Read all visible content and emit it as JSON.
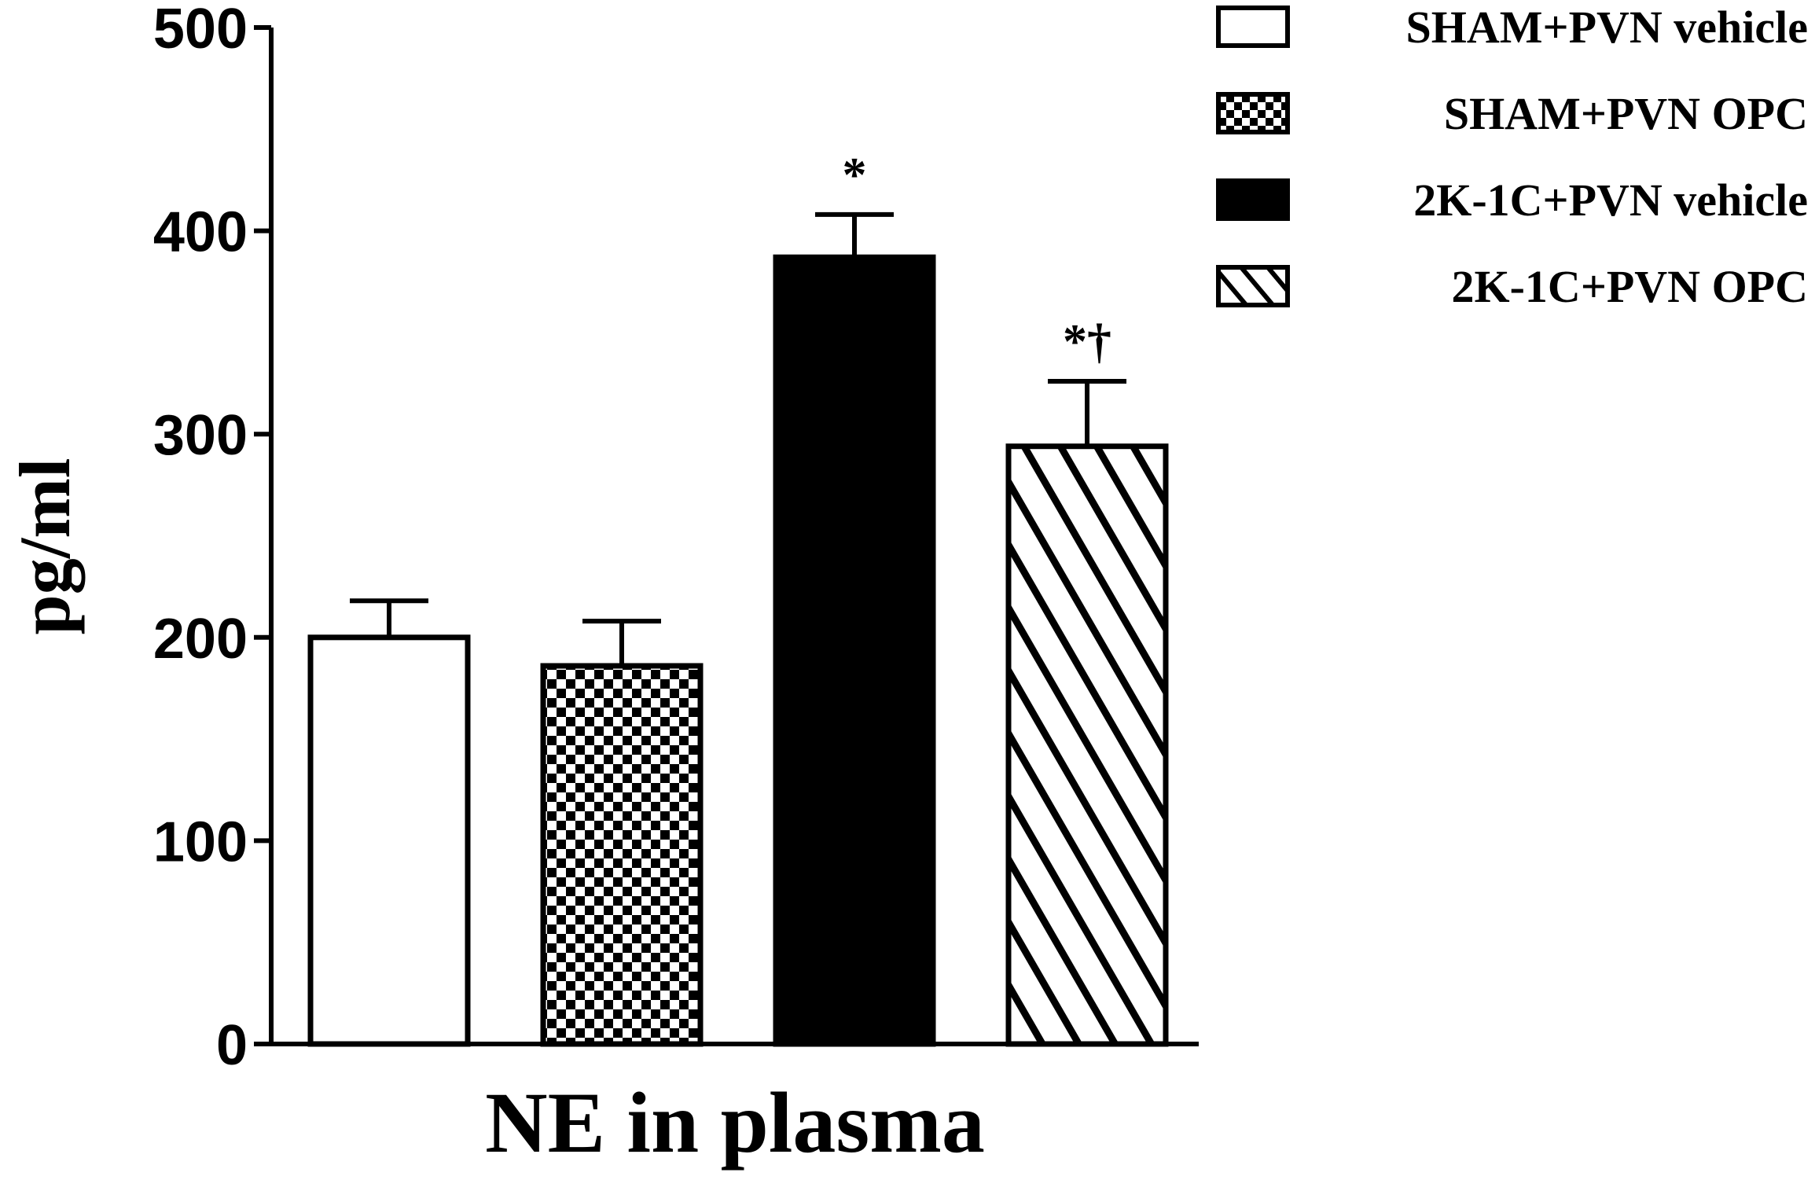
{
  "chart_data": {
    "type": "bar",
    "xlabel": "NE in plasma",
    "ylabel": "pg/ml",
    "ylim": [
      0,
      500
    ],
    "yticks": [
      "0",
      "100",
      "200",
      "300",
      "400",
      "500"
    ],
    "grid": false,
    "legend_position": "top-right",
    "series": [
      {
        "name": "SHAM+PVN vehicle",
        "value": 200,
        "error": 18,
        "fill": "white",
        "annotation": ""
      },
      {
        "name": "SHAM+PVN OPC",
        "value": 186,
        "error": 22,
        "fill": "checker",
        "annotation": ""
      },
      {
        "name": "2K-1C+PVN vehicle",
        "value": 387,
        "error": 21,
        "fill": "black",
        "annotation": "*"
      },
      {
        "name": "2K-1C+PVN OPC",
        "value": 294,
        "error": 32,
        "fill": "hatch",
        "annotation": "*†"
      }
    ]
  },
  "colors": {
    "ink": "#000000",
    "background": "#ffffff"
  }
}
